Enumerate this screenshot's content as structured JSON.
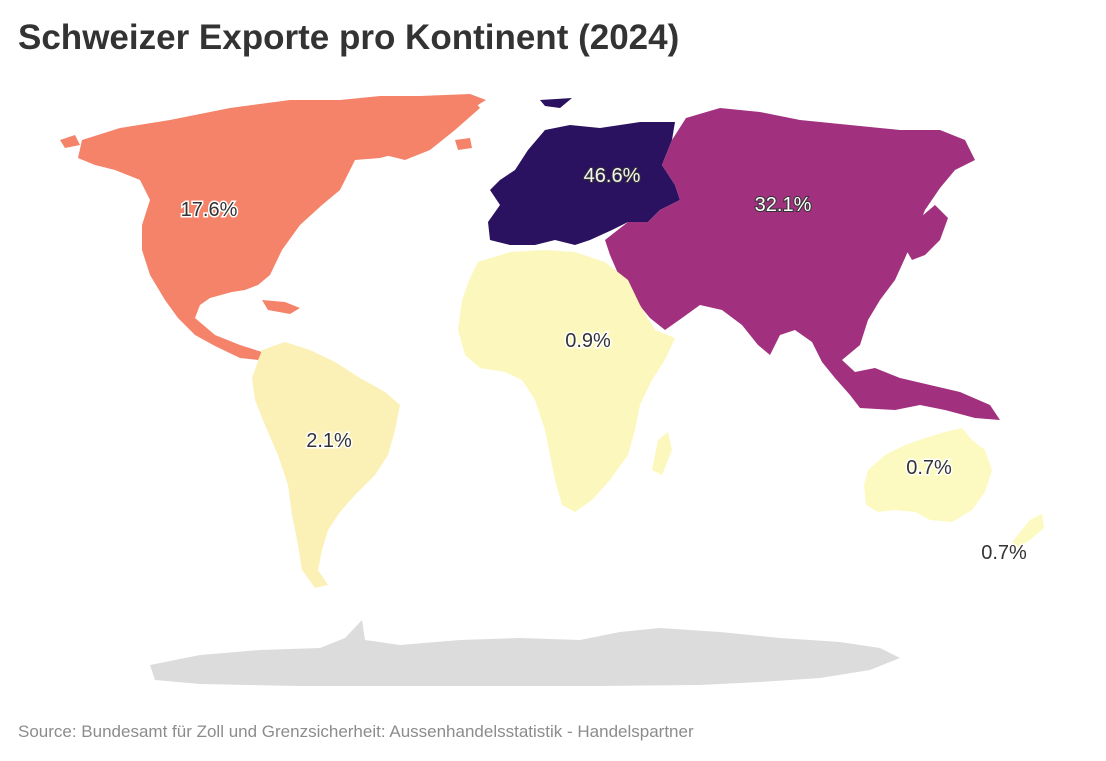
{
  "title": "Schweizer Exporte pro Kontinent (2024)",
  "source": "Source: Bundesamt für Zoll und Grenzsicherheit: Aussenhandelsstatistik - Handelspartner",
  "chart_data": {
    "type": "choropleth",
    "unit": "%",
    "regions": [
      {
        "name": "Europe",
        "value": 46.6,
        "label": "46.6%",
        "color": "#2b1260",
        "label_color": "#f5f5f5"
      },
      {
        "name": "Asia",
        "value": 32.1,
        "label": "32.1%",
        "color": "#a1307e",
        "label_color": "#ffffff"
      },
      {
        "name": "North America",
        "value": 17.6,
        "label": "17.6%",
        "color": "#f5836a",
        "label_color": "#333333"
      },
      {
        "name": "South America",
        "value": 2.1,
        "label": "2.1%",
        "color": "#fbf0b5",
        "label_color": "#333333"
      },
      {
        "name": "Africa",
        "value": 0.9,
        "label": "0.9%",
        "color": "#fcf8bd",
        "label_color": "#333333"
      },
      {
        "name": "Australia",
        "value": 0.7,
        "label": "0.7%",
        "color": "#fcfac0",
        "label_color": "#333333"
      },
      {
        "name": "Oceania",
        "value": 0.7,
        "label": "0.7%",
        "color": "#fcfac0",
        "label_color": "#333333"
      },
      {
        "name": "Antarctica",
        "value": null,
        "label": "",
        "color": "#dcdcdc",
        "label_color": ""
      }
    ]
  }
}
